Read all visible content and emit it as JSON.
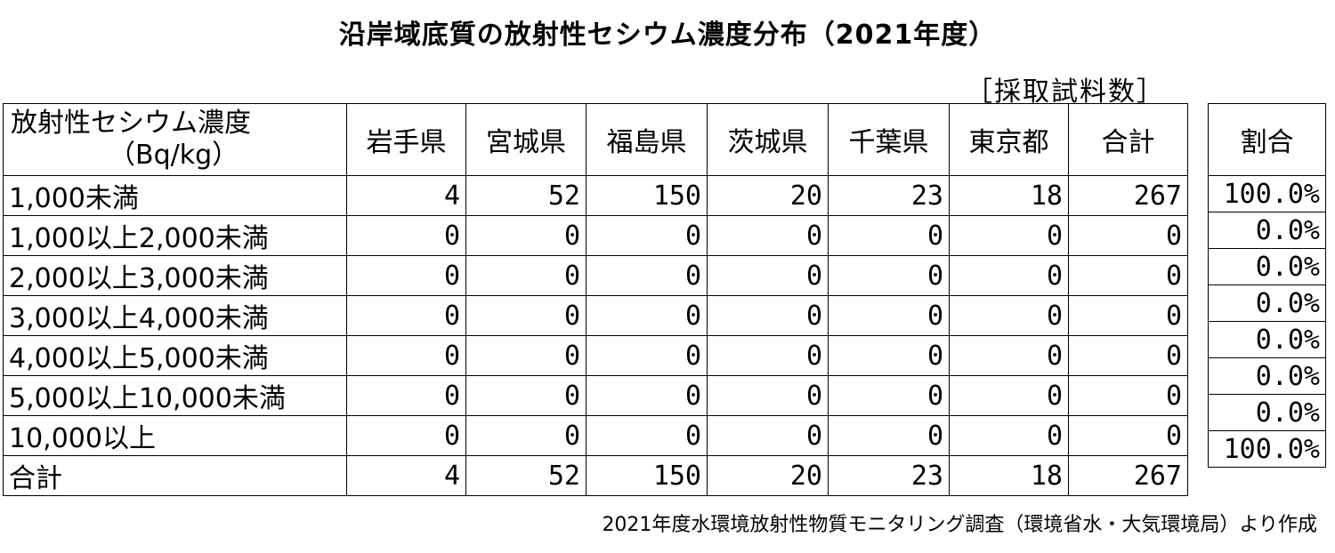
{
  "title": "沿岸域底質の放射性セシウム濃度分布（2021年度）",
  "unit_label": "［採取試料数］",
  "source": "2021年度水環境放射性物質モニタリング調査（環境省水・大気環境局）より作成",
  "table": {
    "header_label_line1": "放射性セシウム濃度",
    "header_label_line2": "（Bq/kg）",
    "columns": [
      "岩手県",
      "宮城県",
      "福島県",
      "茨城県",
      "千葉県",
      "東京都",
      "合計"
    ],
    "ratio_header": "割合",
    "rows": [
      {
        "label": "1,000未満",
        "values": [
          "4",
          "52",
          "150",
          "20",
          "23",
          "18",
          "267"
        ],
        "ratio": "100.0%"
      },
      {
        "label": "1,000以上2,000未満",
        "values": [
          "0",
          "0",
          "0",
          "0",
          "0",
          "0",
          "0"
        ],
        "ratio": "0.0%"
      },
      {
        "label": "2,000以上3,000未満",
        "values": [
          "0",
          "0",
          "0",
          "0",
          "0",
          "0",
          "0"
        ],
        "ratio": "0.0%"
      },
      {
        "label": "3,000以上4,000未満",
        "values": [
          "0",
          "0",
          "0",
          "0",
          "0",
          "0",
          "0"
        ],
        "ratio": "0.0%"
      },
      {
        "label": "4,000以上5,000未満",
        "values": [
          "0",
          "0",
          "0",
          "0",
          "0",
          "0",
          "0"
        ],
        "ratio": "0.0%"
      },
      {
        "label": "5,000以上10,000未満",
        "values": [
          "0",
          "0",
          "0",
          "0",
          "0",
          "0",
          "0"
        ],
        "ratio": "0.0%"
      },
      {
        "label": "10,000以上",
        "values": [
          "0",
          "0",
          "0",
          "0",
          "0",
          "0",
          "0"
        ],
        "ratio": "0.0%"
      },
      {
        "label": "合計",
        "values": [
          "4",
          "52",
          "150",
          "20",
          "23",
          "18",
          "267"
        ],
        "ratio": "100.0%"
      }
    ]
  },
  "chart_data": {
    "type": "table",
    "title": "沿岸域底質の放射性セシウム濃度分布（2021年度）",
    "columns": [
      "放射性セシウム濃度（Bq/kg）",
      "岩手県",
      "宮城県",
      "福島県",
      "茨城県",
      "千葉県",
      "東京都",
      "合計",
      "割合"
    ],
    "rows": [
      [
        "1,000未満",
        4,
        52,
        150,
        20,
        23,
        18,
        267,
        "100.0%"
      ],
      [
        "1,000以上2,000未満",
        0,
        0,
        0,
        0,
        0,
        0,
        0,
        "0.0%"
      ],
      [
        "2,000以上3,000未満",
        0,
        0,
        0,
        0,
        0,
        0,
        0,
        "0.0%"
      ],
      [
        "3,000以上4,000未満",
        0,
        0,
        0,
        0,
        0,
        0,
        0,
        "0.0%"
      ],
      [
        "4,000以上5,000未満",
        0,
        0,
        0,
        0,
        0,
        0,
        0,
        "0.0%"
      ],
      [
        "5,000以上10,000未満",
        0,
        0,
        0,
        0,
        0,
        0,
        0,
        "0.0%"
      ],
      [
        "10,000以上",
        0,
        0,
        0,
        0,
        0,
        0,
        0,
        "0.0%"
      ],
      [
        "合計",
        4,
        52,
        150,
        20,
        23,
        18,
        267,
        "100.0%"
      ]
    ]
  }
}
